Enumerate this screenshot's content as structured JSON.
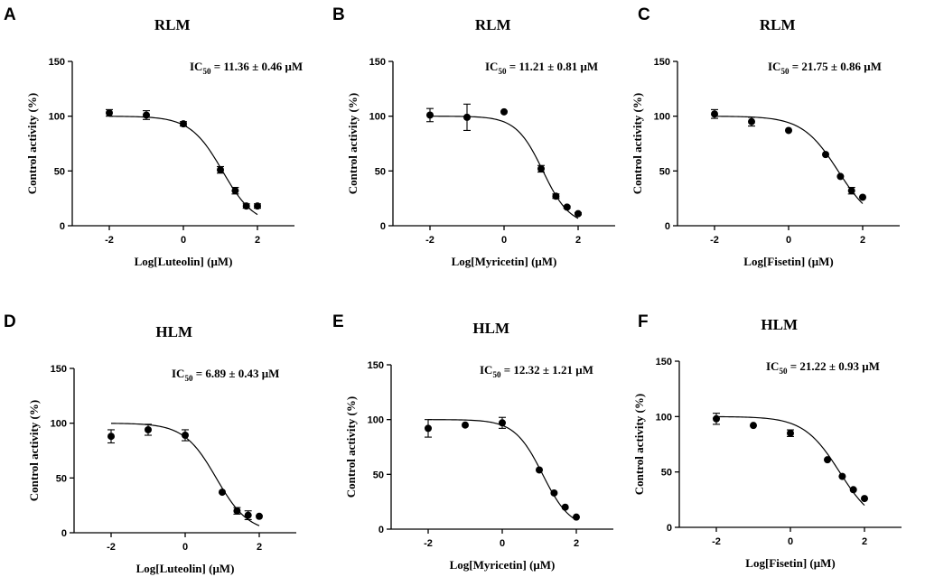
{
  "chart_data": [
    {
      "type": "scatter",
      "panel": "A",
      "title": "RLM",
      "ic50_prefix": "IC",
      "ic50_sub": "50",
      "ic50_text": " = 11.36 ± 0.46 μM",
      "ic50_value": 11.36,
      "xlabel": "Log[Luteolin] (μM)",
      "ylabel": "Control activity (%)",
      "xlim": [
        -3,
        3
      ],
      "ylim": [
        0,
        150
      ],
      "xticks": [
        -2,
        0,
        2
      ],
      "yticks": [
        0,
        50,
        100,
        150
      ],
      "x": [
        -2,
        -1,
        0,
        1,
        1.4,
        1.7,
        2
      ],
      "y": [
        103,
        101,
        93,
        51,
        32,
        18,
        18
      ],
      "err": [
        3,
        4,
        2,
        3,
        3,
        2,
        2
      ],
      "curve": {
        "top": 100,
        "bottom": 0,
        "log_ic50": 1.055,
        "hill": 1.0,
        "x_range": [
          -2,
          2
        ]
      }
    },
    {
      "type": "scatter",
      "panel": "B",
      "title": "RLM",
      "ic50_prefix": "IC",
      "ic50_sub": "50",
      "ic50_text": " = 11.21 ± 0.81 μM",
      "ic50_value": 11.21,
      "xlabel": "Log[Myricetin] (μM)",
      "ylabel": "Control activity (%)",
      "xlim": [
        -3,
        3
      ],
      "ylim": [
        0,
        150
      ],
      "xticks": [
        -2,
        0,
        2
      ],
      "yticks": [
        0,
        50,
        100,
        150
      ],
      "x": [
        -2,
        -1,
        0,
        1,
        1.4,
        1.7,
        2
      ],
      "y": [
        101,
        99,
        104,
        52,
        27,
        17,
        11
      ],
      "err": [
        6,
        12,
        0,
        3,
        2,
        1,
        1
      ],
      "curve": {
        "top": 100,
        "bottom": 0,
        "log_ic50": 1.05,
        "hill": 1.2,
        "x_range": [
          -2,
          2
        ]
      }
    },
    {
      "type": "scatter",
      "panel": "C",
      "title": "RLM",
      "ic50_prefix": "IC",
      "ic50_sub": "50",
      "ic50_text": " = 21.75 ± 0.86 μM",
      "ic50_value": 21.75,
      "xlabel": "Log[Fisetin] (μM)",
      "ylabel": "Control activity (%)",
      "xlim": [
        -3,
        3
      ],
      "ylim": [
        0,
        150
      ],
      "xticks": [
        -2,
        0,
        2
      ],
      "yticks": [
        0,
        50,
        100,
        150
      ],
      "x": [
        -2,
        -1,
        0,
        1,
        1.4,
        1.7,
        2
      ],
      "y": [
        102,
        95,
        87,
        65,
        45,
        32,
        26
      ],
      "err": [
        4,
        4,
        0,
        0,
        0,
        3,
        0
      ],
      "curve": {
        "top": 100,
        "bottom": 0,
        "log_ic50": 1.337,
        "hill": 0.9,
        "x_range": [
          -2,
          2
        ]
      }
    },
    {
      "type": "scatter",
      "panel": "D",
      "title": "HLM",
      "ic50_prefix": "IC",
      "ic50_sub": "50",
      "ic50_text": " = 6.89 ± 0.43 μM",
      "ic50_value": 6.89,
      "xlabel": "Log[Luteolin] (μM)",
      "ylabel": "Control activity (%)",
      "xlim": [
        -3,
        3
      ],
      "ylim": [
        0,
        150
      ],
      "xticks": [
        -2,
        0,
        2
      ],
      "yticks": [
        0,
        50,
        100,
        150
      ],
      "x": [
        -2,
        -1,
        0,
        1,
        1.4,
        1.7,
        2
      ],
      "y": [
        88,
        94,
        89,
        37,
        20,
        16,
        15
      ],
      "err": [
        6,
        5,
        5,
        0,
        3,
        4,
        0
      ],
      "curve": {
        "top": 100,
        "bottom": 0,
        "log_ic50": 0.838,
        "hill": 1.0,
        "x_range": [
          -2,
          2
        ]
      }
    },
    {
      "type": "scatter",
      "panel": "E",
      "title": "HLM",
      "ic50_prefix": "IC",
      "ic50_sub": "50",
      "ic50_text": " = 12.32 ± 1.21 μM",
      "ic50_value": 12.32,
      "xlabel": "Log[Myricetin] (μM)",
      "ylabel": "Control activity (%)",
      "xlim": [
        -3,
        3
      ],
      "ylim": [
        0,
        150
      ],
      "xticks": [
        -2,
        0,
        2
      ],
      "yticks": [
        0,
        50,
        100,
        150
      ],
      "x": [
        -2,
        -1,
        0,
        1,
        1.4,
        1.7,
        2
      ],
      "y": [
        92,
        95,
        97,
        54,
        33,
        20,
        11
      ],
      "err": [
        8,
        0,
        5,
        0,
        0,
        0,
        0
      ],
      "curve": {
        "top": 100,
        "bottom": 0,
        "log_ic50": 1.09,
        "hill": 1.15,
        "x_range": [
          -2,
          2
        ]
      }
    },
    {
      "type": "scatter",
      "panel": "F",
      "title": "HLM",
      "ic50_prefix": "IC",
      "ic50_sub": "50",
      "ic50_text": " = 21.22 ± 0.93 μM",
      "ic50_value": 21.22,
      "xlabel": "Log[Fisetin] (μM)",
      "ylabel": "Control activity (%)",
      "xlim": [
        -3,
        3
      ],
      "ylim": [
        0,
        150
      ],
      "xticks": [
        -2,
        0,
        2
      ],
      "yticks": [
        0,
        50,
        100,
        150
      ],
      "x": [
        -2,
        -1,
        0,
        1,
        1.4,
        1.7,
        2
      ],
      "y": [
        98,
        92,
        85,
        61,
        46,
        34,
        26
      ],
      "err": [
        5,
        0,
        3,
        0,
        0,
        0,
        0
      ],
      "curve": {
        "top": 100,
        "bottom": 0,
        "log_ic50": 1.327,
        "hill": 0.9,
        "x_range": [
          -2,
          2
        ]
      }
    }
  ]
}
